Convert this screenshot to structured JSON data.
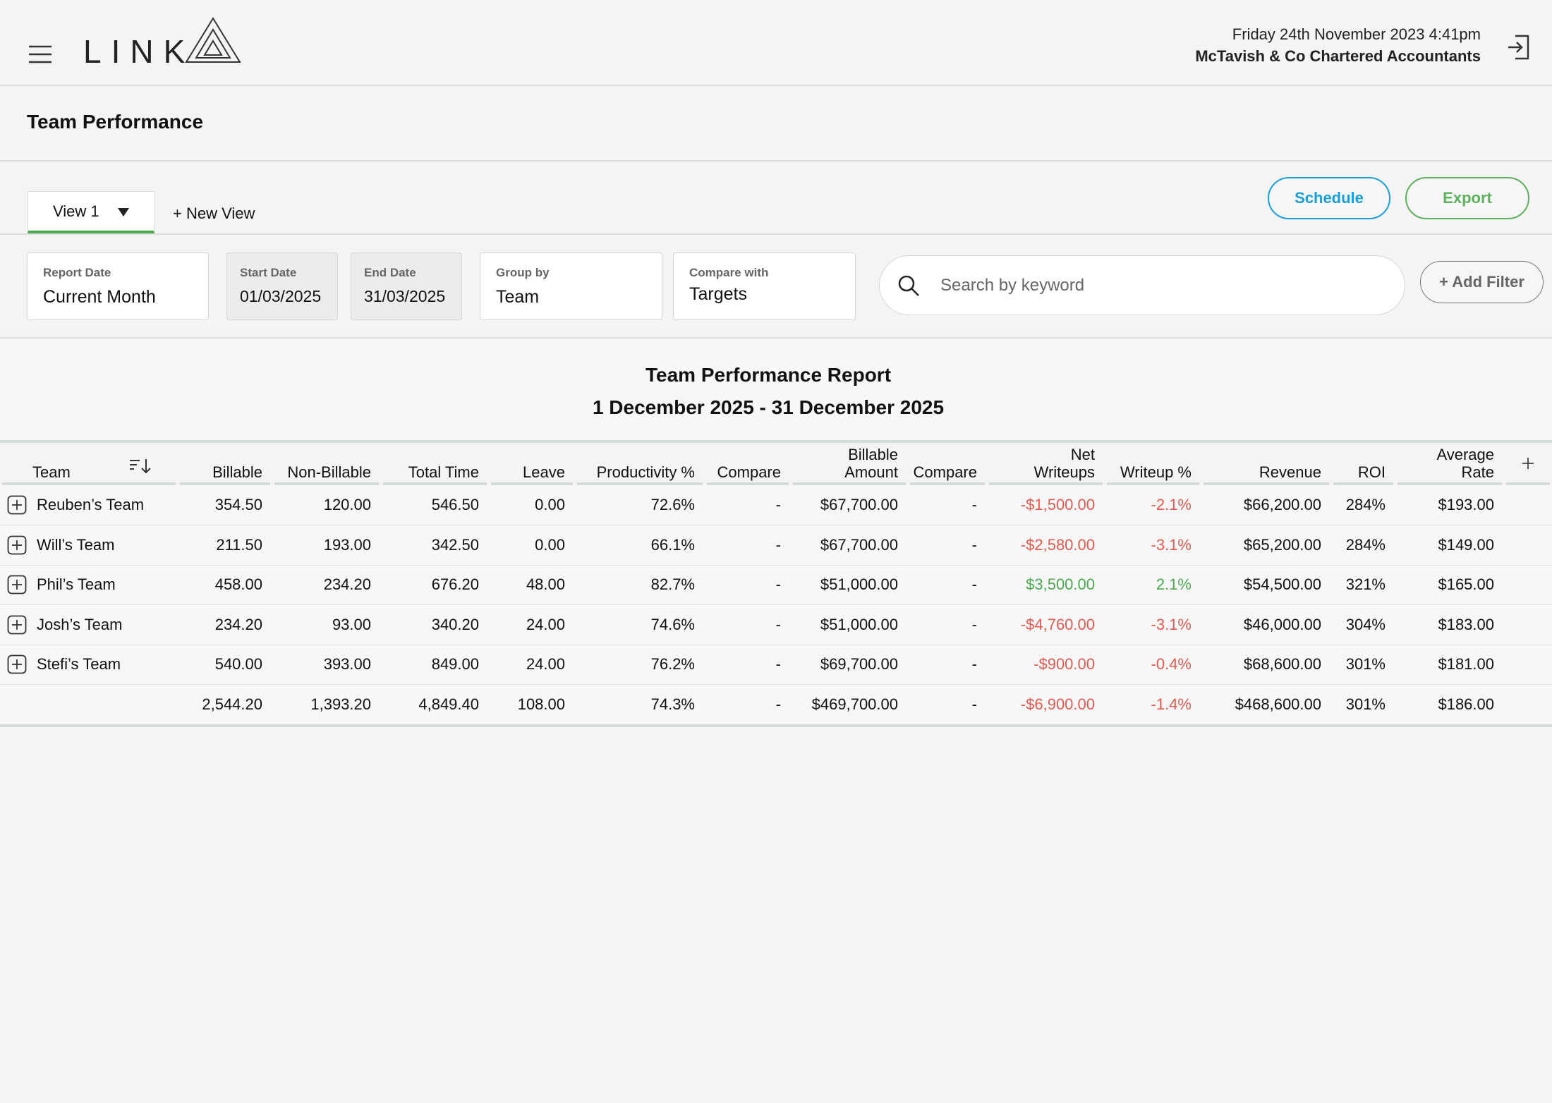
{
  "header": {
    "brand": "LINK",
    "datetime": "Friday 24th November 2023  4:41pm",
    "company": "McTavish & Co Chartered Accountants"
  },
  "page_title": "Team Performance",
  "toolbar": {
    "view": "View 1",
    "new_view": "+ New View",
    "schedule": "Schedule",
    "export": "Export"
  },
  "filters": {
    "report_date": {
      "label": "Report Date",
      "value": "Current Month"
    },
    "start_date": {
      "label": "Start Date",
      "value": "01/03/2025"
    },
    "end_date": {
      "label": "End Date",
      "value": "31/03/2025"
    },
    "group_by": {
      "label": "Group by",
      "value": "Team"
    },
    "compare_with": {
      "label": "Compare with",
      "value": "Targets"
    },
    "search_placeholder": "Search by keyword",
    "add_filter": "+ Add Filter"
  },
  "report": {
    "title": "Team Performance Report",
    "period": "1 December 2025 - 31 December 2025"
  },
  "table": {
    "columns": [
      "Team",
      "Billable",
      "Non-Billable",
      "Total Time",
      "Leave",
      "Productivity %",
      "Compare",
      "Billable Amount",
      "Compare",
      "Net Writeups",
      "Writeup %",
      "Revenue",
      "ROI",
      "Average Rate"
    ],
    "rows": [
      [
        "Reuben’s Team",
        "354.50",
        "120.00",
        "546.50",
        "0.00",
        "72.6%",
        "-",
        "$67,700.00",
        "-",
        "-$1,500.00",
        "-2.1%",
        "$66,200.00",
        "284%",
        "$193.00"
      ],
      [
        "Will’s Team",
        "211.50",
        "193.00",
        "342.50",
        "0.00",
        "66.1%",
        "-",
        "$67,700.00",
        "-",
        "-$2,580.00",
        "-3.1%",
        "$65,200.00",
        "284%",
        "$149.00"
      ],
      [
        "Phil’s Team",
        "458.00",
        "234.20",
        "676.20",
        "48.00",
        "82.7%",
        "-",
        "$51,000.00",
        "-",
        "$3,500.00",
        "2.1%",
        "$54,500.00",
        "321%",
        "$165.00"
      ],
      [
        "Josh’s Team",
        "234.20",
        "93.00",
        "340.20",
        "24.00",
        "74.6%",
        "-",
        "$51,000.00",
        "-",
        "-$4,760.00",
        "-3.1%",
        "$46,000.00",
        "304%",
        "$183.00"
      ],
      [
        "Stefi’s Team",
        "540.00",
        "393.00",
        "849.00",
        "24.00",
        "76.2%",
        "-",
        "$69,700.00",
        "-",
        "-$900.00",
        "-0.4%",
        "$68,600.00",
        "301%",
        "$181.00"
      ]
    ],
    "totals": [
      "2,544.20",
      "1,393.20",
      "4,849.40",
      "108.00",
      "74.3%",
      "-",
      "$469,700.00",
      "-",
      "-$6,900.00",
      "-1.4%",
      "$468,600.00",
      "301%",
      "$186.00"
    ]
  }
}
